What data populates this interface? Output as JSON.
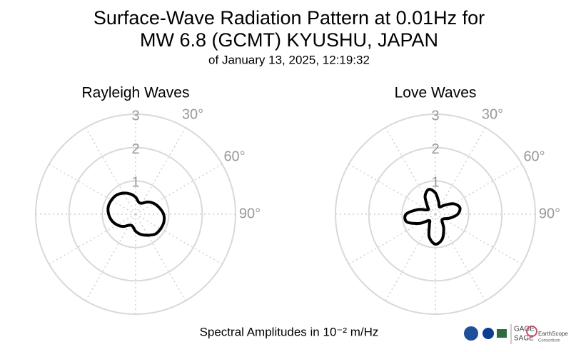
{
  "title": [
    "Surface-Wave Radiation Pattern at 0.01Hz for",
    "MW 6.8 (GCMT) KYUSHU, JAPAN"
  ],
  "subtitle": "of January 13, 2025, 12:19:32",
  "footer": "Spectral Amplitudes in 10⁻² m/Hz",
  "logos": [
    "GAGE",
    "SAGE",
    "EarthScope",
    "Consortium"
  ],
  "chart_data": [
    {
      "type": "polar",
      "title": "Rayleigh Waves",
      "color": "#000000",
      "theta": [
        0,
        15,
        30,
        45,
        60,
        75,
        90,
        105,
        120,
        135,
        150,
        165,
        180,
        195,
        210,
        225,
        240,
        255,
        270,
        285,
        300,
        315,
        330,
        345
      ],
      "values": [
        0.51,
        0.37,
        0.38,
        0.52,
        0.64,
        0.74,
        0.84,
        0.88,
        0.87,
        0.84,
        0.73,
        0.63,
        0.51,
        0.37,
        0.38,
        0.52,
        0.64,
        0.74,
        0.81,
        0.85,
        0.84,
        0.81,
        0.73,
        0.63
      ],
      "rlim": [
        0,
        3
      ],
      "rticks": [
        1,
        2,
        3
      ],
      "thetagrid": [
        0,
        30,
        60,
        90,
        120,
        150,
        180,
        210,
        240,
        270,
        300,
        330
      ],
      "thetaticks": [
        {
          "value": 30,
          "label": "30°"
        },
        {
          "value": 60,
          "label": "60°"
        },
        {
          "value": 90,
          "label": "90°"
        }
      ]
    },
    {
      "type": "polar",
      "title": "Love Waves",
      "color": "#000000",
      "theta": [
        0,
        15,
        30,
        45,
        60,
        75,
        90,
        105,
        120,
        135,
        150,
        165,
        180,
        195,
        210,
        225,
        240,
        255,
        270,
        285,
        300,
        315,
        330,
        345
      ],
      "values": [
        0.64,
        0.38,
        0.25,
        0.38,
        0.63,
        0.76,
        0.67,
        0.45,
        0.28,
        0.28,
        0.5,
        0.78,
        0.9,
        0.71,
        0.36,
        0.27,
        0.55,
        0.89,
        0.88,
        0.54,
        0.26,
        0.34,
        0.62,
        0.77
      ],
      "rlim": [
        0,
        3
      ],
      "rticks": [
        1,
        2,
        3
      ],
      "thetagrid": [
        0,
        30,
        60,
        90,
        120,
        150,
        180,
        210,
        240,
        270,
        300,
        330
      ],
      "thetaticks": [
        {
          "value": 30,
          "label": "30°"
        },
        {
          "value": 60,
          "label": "60°"
        },
        {
          "value": 90,
          "label": "90°"
        }
      ]
    }
  ]
}
